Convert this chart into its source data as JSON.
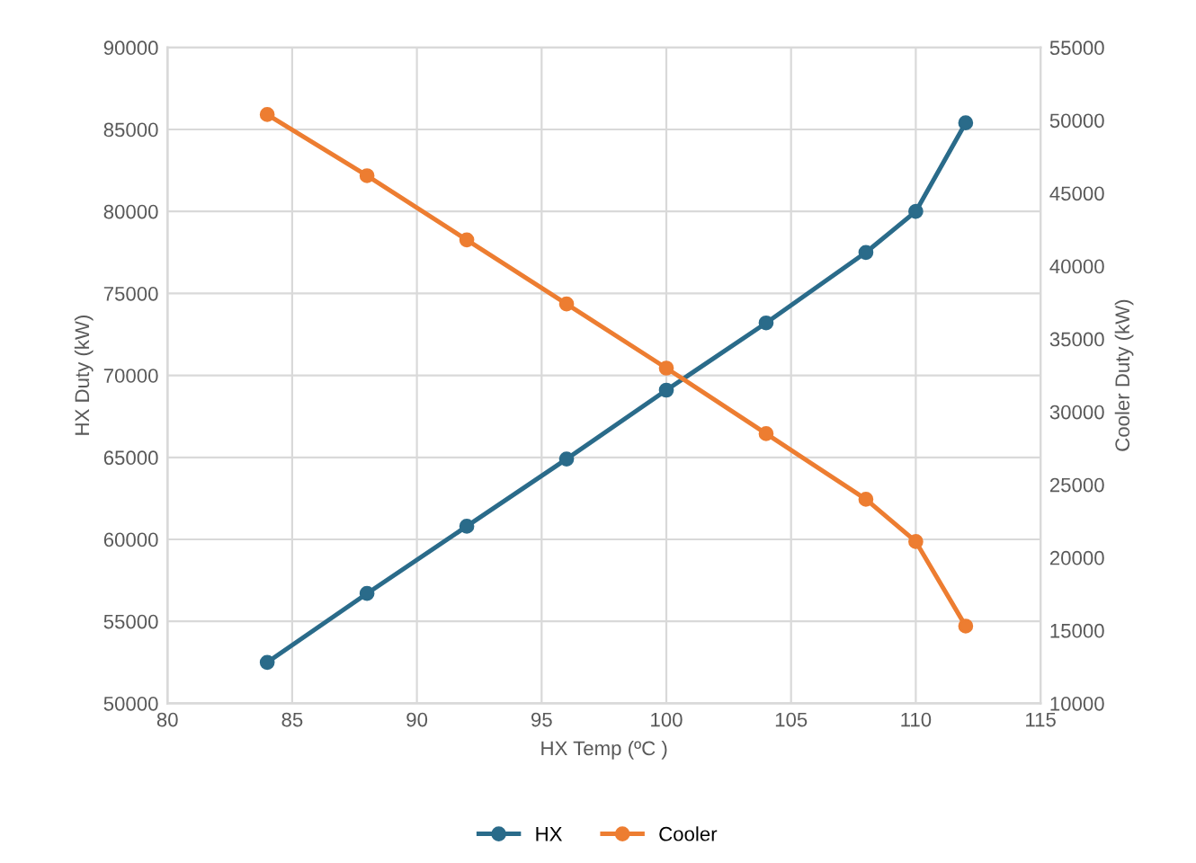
{
  "chart_data": {
    "type": "line",
    "xlabel": "HX Temp (ºC )",
    "ylabel": "HX Duty (kW)",
    "y2label": "Cooler Duty (kW)",
    "x": [
      84,
      88,
      92,
      96,
      100,
      104,
      108,
      110,
      112
    ],
    "series": [
      {
        "name": "HX",
        "color": "#2a6b8a",
        "values": [
          52500,
          56700,
          60800,
          64900,
          69100,
          73200,
          77500,
          80000,
          85400
        ]
      },
      {
        "name": "Cooler",
        "color": "#ed7d31",
        "axis": "y2",
        "values": [
          50400,
          46200,
          41800,
          37400,
          33000,
          28500,
          24000,
          21100,
          15300
        ]
      }
    ],
    "xlim": [
      80,
      115
    ],
    "xticks": [
      80,
      85,
      90,
      95,
      100,
      105,
      110,
      115
    ],
    "ylim": [
      50000,
      90000
    ],
    "yticks": [
      50000,
      55000,
      60000,
      65000,
      70000,
      75000,
      80000,
      85000,
      90000
    ],
    "y2lim": [
      10000,
      55000
    ],
    "y2ticks": [
      10000,
      15000,
      20000,
      25000,
      30000,
      35000,
      40000,
      45000,
      50000,
      55000
    ],
    "grid": true,
    "legend": "bottom",
    "marker": "circle",
    "line_style": "solid"
  }
}
